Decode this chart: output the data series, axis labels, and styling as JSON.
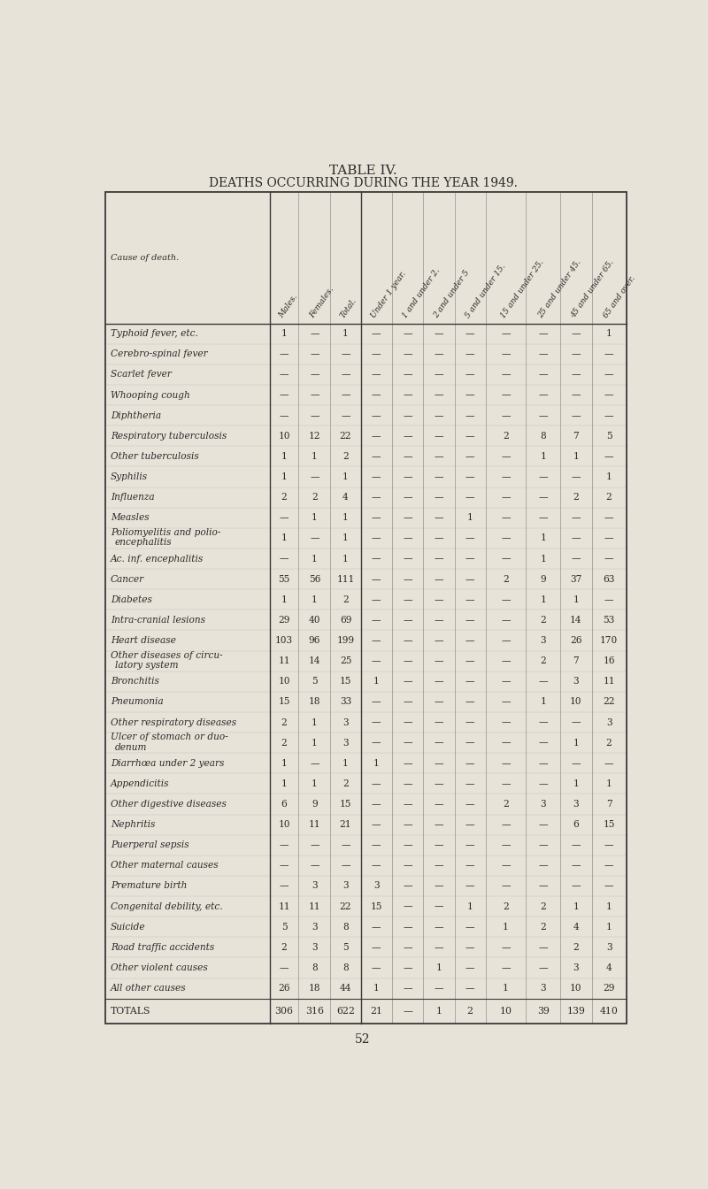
{
  "title1": "TABLE IV.",
  "title2": "DEATHS OCCURRING DURING THE YEAR 1949.",
  "col_headers": [
    "Cause of death.",
    "Males.",
    "Females.",
    "Total.",
    "Under 1 year.",
    "1 and under 2.",
    "2 and under 5",
    "5 and under 15.",
    "15 and under 25.",
    "25 and under 45.",
    "45 and under 65.",
    "65 and over."
  ],
  "rows": [
    [
      "Typhoid fever, etc.",
      "1",
      "—",
      "1",
      "—",
      "—",
      "—",
      "—",
      "—",
      "—",
      "—",
      "1"
    ],
    [
      "Cerebro-spinal fever",
      "—",
      "—",
      "—",
      "—",
      "—",
      "—",
      "—",
      "—",
      "—",
      "—",
      "—"
    ],
    [
      "Scarlet fever",
      "—",
      "—",
      "—",
      "—",
      "—",
      "—",
      "—",
      "—",
      "—",
      "—",
      "—"
    ],
    [
      "Whooping cough",
      "—",
      "—",
      "—",
      "—",
      "—",
      "—",
      "—",
      "—",
      "—",
      "—",
      "—"
    ],
    [
      "Diphtheria",
      "—",
      "—",
      "—",
      "—",
      "—",
      "—",
      "—",
      "—",
      "—",
      "—",
      "—"
    ],
    [
      "Respiratory tuberculosis",
      "10",
      "12",
      "22",
      "—",
      "—",
      "—",
      "—",
      "2",
      "8",
      "7",
      "5"
    ],
    [
      "Other tuberculosis",
      "1",
      "1",
      "2",
      "—",
      "—",
      "—",
      "—",
      "—",
      "1",
      "1",
      "—"
    ],
    [
      "Syphilis",
      "1",
      "—",
      "1",
      "—",
      "—",
      "—",
      "—",
      "—",
      "—",
      "—",
      "1"
    ],
    [
      "Influenza",
      "2",
      "2",
      "4",
      "—",
      "—",
      "—",
      "—",
      "—",
      "—",
      "2",
      "2"
    ],
    [
      "Measles",
      "—",
      "1",
      "1",
      "—",
      "—",
      "—",
      "1",
      "—",
      "—",
      "—",
      "—"
    ],
    [
      "Poliomyelitis and polio-|  encephalitis",
      "1",
      "—",
      "1",
      "—",
      "—",
      "—",
      "—",
      "—",
      "1",
      "—",
      "—"
    ],
    [
      "Ac. inf. encephalitis",
      "—",
      "1",
      "1",
      "—",
      "—",
      "—",
      "—",
      "—",
      "1",
      "—",
      "—"
    ],
    [
      "Cancer",
      "55",
      "56",
      "111",
      "—",
      "—",
      "—",
      "—",
      "2",
      "9",
      "37",
      "63"
    ],
    [
      "Diabetes",
      "1",
      "1",
      "2",
      "—",
      "—",
      "—",
      "—",
      "—",
      "1",
      "1",
      "—"
    ],
    [
      "Intra-cranial lesions",
      "29",
      "40",
      "69",
      "—",
      "—",
      "—",
      "—",
      "—",
      "2",
      "14",
      "53"
    ],
    [
      "Heart disease",
      "103",
      "96",
      "199",
      "—",
      "—",
      "—",
      "—",
      "—",
      "3",
      "26",
      "170"
    ],
    [
      "Other diseases of circu-|  latory system",
      "11",
      "14",
      "25",
      "—",
      "—",
      "—",
      "—",
      "—",
      "2",
      "7",
      "16"
    ],
    [
      "Bronchitis",
      "10",
      "5",
      "15",
      "1",
      "—",
      "—",
      "—",
      "—",
      "—",
      "3",
      "11"
    ],
    [
      "Pneumonia",
      "15",
      "18",
      "33",
      "—",
      "—",
      "—",
      "—",
      "—",
      "1",
      "10",
      "22"
    ],
    [
      "Other respiratory diseases",
      "2",
      "1",
      "3",
      "—",
      "—",
      "—",
      "—",
      "—",
      "—",
      "—",
      "3"
    ],
    [
      "Ulcer of stomach or duo-|  denum",
      "2",
      "1",
      "3",
      "—",
      "—",
      "—",
      "—",
      "—",
      "—",
      "1",
      "2"
    ],
    [
      "Diarrhœa under 2 years",
      "1",
      "—",
      "1",
      "1",
      "—",
      "—",
      "—",
      "—",
      "—",
      "—",
      "—"
    ],
    [
      "Appendicitis",
      "1",
      "1",
      "2",
      "—",
      "—",
      "—",
      "—",
      "—",
      "—",
      "1",
      "1"
    ],
    [
      "Other digestive diseases",
      "6",
      "9",
      "15",
      "—",
      "—",
      "—",
      "—",
      "2",
      "3",
      "3",
      "7"
    ],
    [
      "Nephritis",
      "10",
      "11",
      "21",
      "—",
      "—",
      "—",
      "—",
      "—",
      "—",
      "6",
      "15"
    ],
    [
      "Puerperal sepsis",
      "—",
      "—",
      "—",
      "—",
      "—",
      "—",
      "—",
      "—",
      "—",
      "—",
      "—"
    ],
    [
      "Other maternal causes",
      "—",
      "—",
      "—",
      "—",
      "—",
      "—",
      "—",
      "—",
      "—",
      "—",
      "—"
    ],
    [
      "Premature birth",
      "—",
      "3",
      "3",
      "3",
      "—",
      "—",
      "—",
      "—",
      "—",
      "—",
      "—"
    ],
    [
      "Congenital debility, etc.",
      "11",
      "11",
      "22",
      "15",
      "—",
      "—",
      "1",
      "2",
      "2",
      "1",
      "1"
    ],
    [
      "Suicide",
      "5",
      "3",
      "8",
      "—",
      "—",
      "—",
      "—",
      "1",
      "2",
      "4",
      "1"
    ],
    [
      "Road traffic accidents",
      "2",
      "3",
      "5",
      "—",
      "—",
      "—",
      "—",
      "—",
      "—",
      "2",
      "3"
    ],
    [
      "Other violent causes",
      "—",
      "8",
      "8",
      "—",
      "—",
      "1",
      "—",
      "—",
      "—",
      "3",
      "4"
    ],
    [
      "All other causes",
      "26",
      "18",
      "44",
      "1",
      "—",
      "—",
      "—",
      "1",
      "3",
      "10",
      "29"
    ]
  ],
  "totals_row": [
    "TOTALS",
    "306",
    "316",
    "622",
    "21",
    "—",
    "1",
    "2",
    "10",
    "39",
    "139",
    "410"
  ],
  "footer_page": "52",
  "bg_color": "#e8e3d8",
  "text_color": "#2a2a2a"
}
